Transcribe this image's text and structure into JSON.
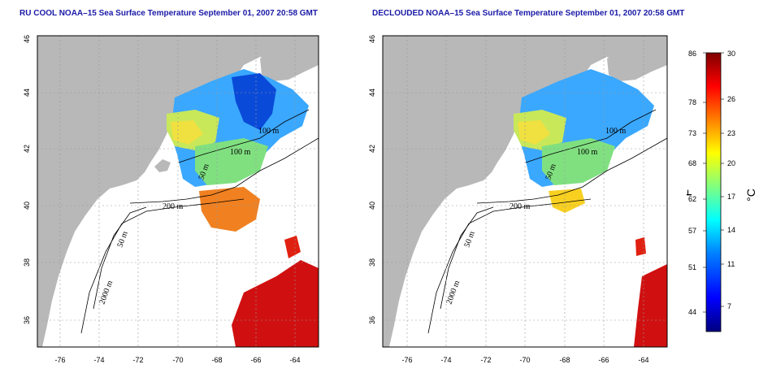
{
  "left_panel": {
    "title": "RU COOL NOAA–15 Sea Surface Temperature September 01, 2007 20:58 GMT",
    "x_ticks": [
      "-76",
      "-74",
      "-72",
      "-70",
      "-68",
      "-66",
      "-64"
    ],
    "y_ticks": [
      "36",
      "38",
      "40",
      "42",
      "44",
      "46"
    ],
    "contour_labels": [
      "100 m",
      "100 m",
      "50 m",
      "200 m",
      "50 m",
      "2000 m"
    ]
  },
  "right_panel": {
    "title": "DECLOUDED NOAA–15 Sea Surface Temperature September 01, 2007 20:58 GMT",
    "x_ticks": [
      "-76",
      "-74",
      "-72",
      "-70",
      "-68",
      "-66",
      "-64"
    ],
    "y_ticks": [
      "36",
      "38",
      "40",
      "42",
      "44",
      "46"
    ],
    "contour_labels": [
      "100 m",
      "100 m",
      "50 m",
      "200 m",
      "50 m",
      "2000 m"
    ]
  },
  "colorbar": {
    "fahrenheit_ticks": [
      "86",
      "78",
      "73",
      "68",
      "62",
      "57",
      "51",
      "44"
    ],
    "celsius_ticks": [
      "30",
      "26",
      "23",
      "20",
      "17",
      "14",
      "11",
      "7"
    ],
    "fahrenheit_unit": "°F",
    "celsius_unit": "°C",
    "colors": [
      "#00007f",
      "#0000ff",
      "#0080ff",
      "#00ffff",
      "#80ff80",
      "#ffff00",
      "#ff8000",
      "#ff0000",
      "#7f0000"
    ]
  },
  "colors": {
    "land": "#b8b8b8",
    "ocean_nodata": "#ffffff",
    "title": "#1a1aa8",
    "grid": "#999999"
  }
}
